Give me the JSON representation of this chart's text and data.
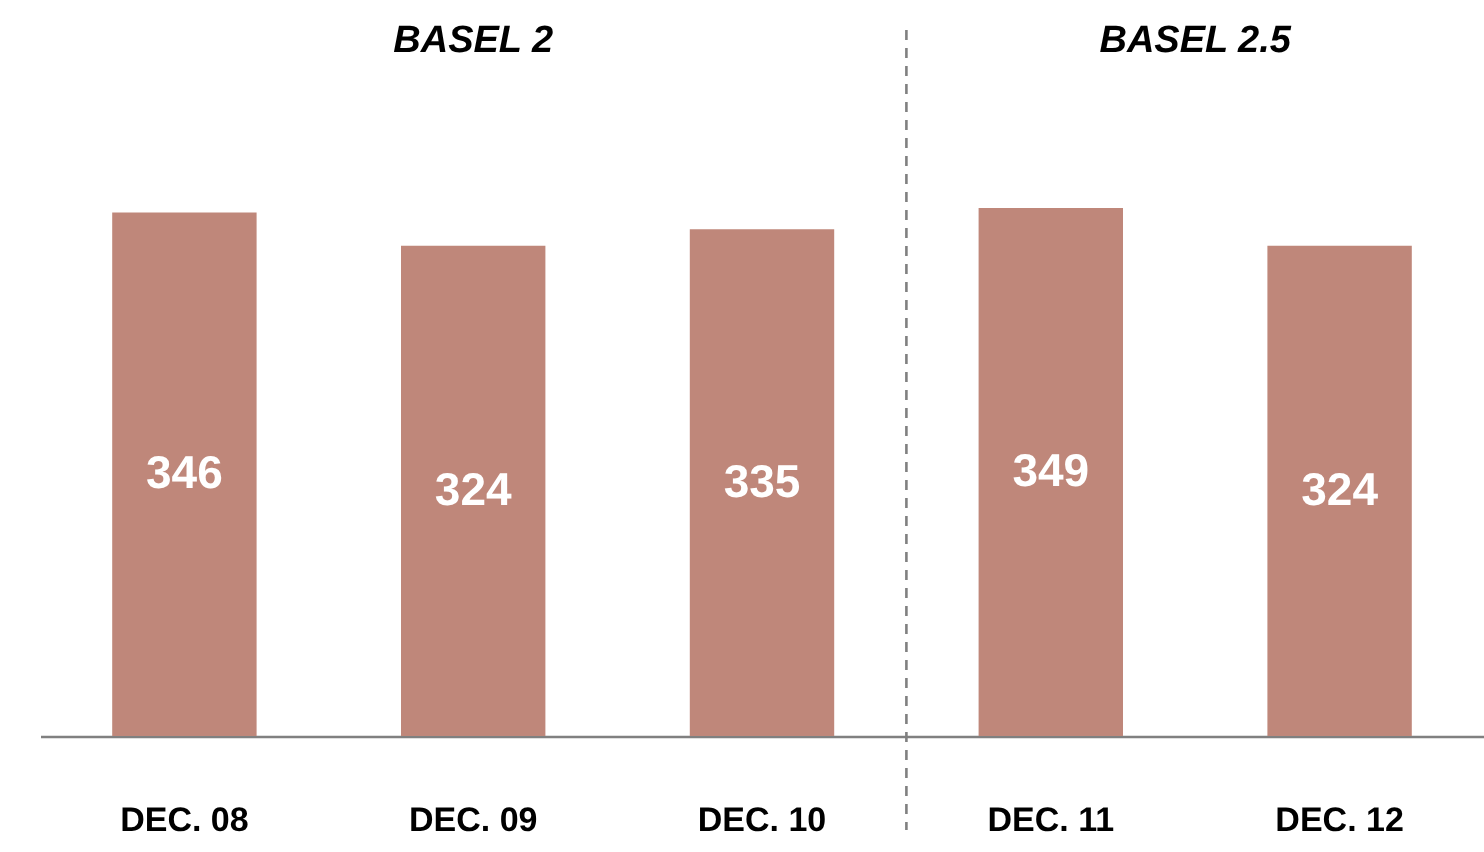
{
  "chart_data": {
    "type": "bar",
    "categories": [
      "DEC. 08",
      "DEC. 09",
      "DEC. 10",
      "DEC. 11",
      "DEC. 12"
    ],
    "values": [
      346,
      324,
      335,
      349,
      324
    ],
    "color": "#bf877a",
    "data_labels": true,
    "annotations": [
      "BASEL 2",
      "BASEL 2.5"
    ]
  }
}
